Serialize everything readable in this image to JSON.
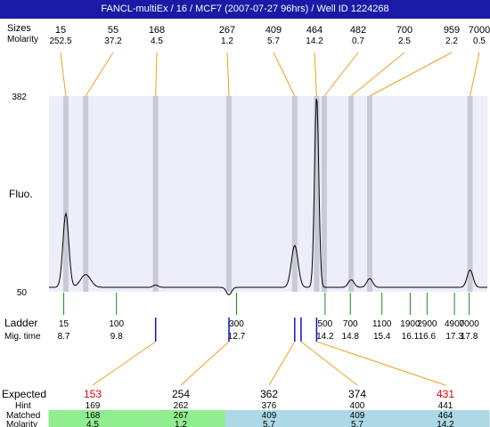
{
  "title": "FANCL-multiEx / 16 / MCF7 (2007-07-27 96hrs) / Well ID 1224268",
  "labels": {
    "sizes": "Sizes",
    "molarity": "Molarity",
    "fluo": "Fluo.",
    "ladder": "Ladder",
    "mig_time": "Mig. time",
    "expected": "Expected",
    "hint": "Hint",
    "matched": "Matched",
    "molarity_bottom": "Molarity"
  },
  "colors": {
    "title_bg": "#1a1aa6",
    "plot_bg": "#eeeefa",
    "band": "#c9c9d8",
    "leader": "#f0a020",
    "ladder_tick": "#1a8a1a",
    "mig_tick": "#1010cc",
    "expected_highlight": "#e60000",
    "matched_green": "#90ee90",
    "matched_blue": "#add8e6"
  },
  "chart_data": {
    "type": "line",
    "y_axis": {
      "min": 50,
      "max": 382,
      "ticks": [
        "382",
        "50"
      ]
    },
    "x_axis": {
      "min": 8.0,
      "max": 18.4
    },
    "peaks": [
      {
        "size": "15",
        "molarity": "252.5",
        "time": 8.4,
        "height": 180
      },
      {
        "size": "55",
        "molarity": "37.2",
        "time": 8.87,
        "height": 75
      },
      {
        "size": "168",
        "molarity": "4.5",
        "time": 10.53,
        "height": 57
      },
      {
        "size": "267",
        "molarity": "1.2",
        "time": 12.27,
        "height": 40
      },
      {
        "size": "409",
        "molarity": "5.7",
        "time": 13.83,
        "height": 125
      },
      {
        "size": "464",
        "molarity": "14.2",
        "time": 14.35,
        "height": 382
      },
      {
        "size": "482",
        "molarity": "0.7",
        "time": 14.53,
        "height": 53
      },
      {
        "size": "700",
        "molarity": "2.5",
        "time": 15.17,
        "height": 66
      },
      {
        "size": "959",
        "molarity": "2.2",
        "time": 15.61,
        "height": 68
      },
      {
        "size": "7000",
        "molarity": "0.5",
        "time": 17.99,
        "height": 83
      }
    ],
    "ladder": [
      {
        "size": "15",
        "time": "8.7",
        "t": 8.35
      },
      {
        "size": "100",
        "time": "9.8",
        "t": 9.6
      },
      {
        "size": "300",
        "time": "12.7",
        "t": 12.45
      },
      {
        "size": "500",
        "time": "14.2",
        "t": 14.55
      },
      {
        "size": "700",
        "time": "14.8",
        "t": 15.15
      },
      {
        "size": "1100",
        "time": "15.4",
        "t": 15.9
      },
      {
        "size": "1900",
        "time": "16.1",
        "t": 16.57
      },
      {
        "size": "2900",
        "time": "16.6",
        "t": 16.97
      },
      {
        "size": "4900",
        "time": "17.3",
        "t": 17.62
      },
      {
        "size": "7000",
        "time": "17.8",
        "t": 17.97
      }
    ],
    "expected": [
      {
        "expected": "153",
        "hint": "169",
        "matched": "168",
        "molarity": "4.5",
        "highlight": true,
        "time": 10.53,
        "match": "green"
      },
      {
        "expected": "254",
        "hint": "262",
        "matched": "267",
        "molarity": "1.2",
        "highlight": false,
        "time": 12.27,
        "match": "green"
      },
      {
        "expected": "362",
        "hint": "376",
        "matched": "409",
        "molarity": "5.7",
        "highlight": false,
        "time": 13.83,
        "match": "blue"
      },
      {
        "expected": "374",
        "hint": "400",
        "matched": "409",
        "molarity": "5.7",
        "highlight": false,
        "time": 13.98,
        "match": "blue"
      },
      {
        "expected": "431",
        "hint": "441",
        "matched": "464",
        "molarity": "14.2",
        "highlight": true,
        "time": 14.35,
        "match": "blue"
      }
    ]
  }
}
